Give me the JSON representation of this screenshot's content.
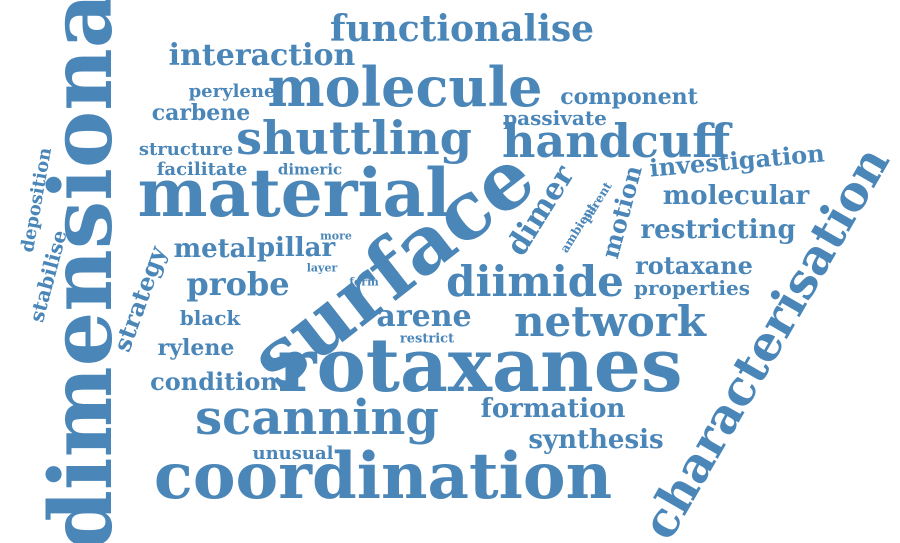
{
  "color": "#4a86b8",
  "words": [
    {
      "text": "dimensional",
      "weight": 10
    },
    {
      "text": "surface",
      "weight": 10
    },
    {
      "text": "rotaxanes",
      "weight": 9
    },
    {
      "text": "coordination",
      "weight": 8
    },
    {
      "text": "material",
      "weight": 8
    },
    {
      "text": "characterisation",
      "weight": 7
    },
    {
      "text": "molecule",
      "weight": 7
    },
    {
      "text": "shuttling",
      "weight": 6
    },
    {
      "text": "handcuff",
      "weight": 6
    },
    {
      "text": "scanning",
      "weight": 6
    },
    {
      "text": "network",
      "weight": 5
    },
    {
      "text": "diimide",
      "weight": 5
    },
    {
      "text": "functionalise",
      "weight": 5
    },
    {
      "text": "dimer",
      "weight": 4
    },
    {
      "text": "interaction",
      "weight": 4
    },
    {
      "text": "probe",
      "weight": 4
    },
    {
      "text": "arene",
      "weight": 4
    },
    {
      "text": "formation",
      "weight": 3
    },
    {
      "text": "synthesis",
      "weight": 3
    },
    {
      "text": "restricting",
      "weight": 3
    },
    {
      "text": "molecular",
      "weight": 3
    },
    {
      "text": "investigation",
      "weight": 3
    },
    {
      "text": "motion",
      "weight": 3
    },
    {
      "text": "strategy",
      "weight": 3
    },
    {
      "text": "condition",
      "weight": 3
    },
    {
      "text": "rotaxane",
      "weight": 3
    },
    {
      "text": "metal",
      "weight": 3
    },
    {
      "text": "pillar",
      "weight": 3
    },
    {
      "text": "component",
      "weight": 2
    },
    {
      "text": "carbene",
      "weight": 2
    },
    {
      "text": "rylene",
      "weight": 2
    },
    {
      "text": "black",
      "weight": 2
    },
    {
      "text": "stabilise",
      "weight": 2
    },
    {
      "text": "properties",
      "weight": 2
    },
    {
      "text": "passivate",
      "weight": 2
    },
    {
      "text": "perylene",
      "weight": 2
    },
    {
      "text": "structure",
      "weight": 2
    },
    {
      "text": "facilitate",
      "weight": 2
    },
    {
      "text": "deposition",
      "weight": 2
    },
    {
      "text": "unusual",
      "weight": 2
    },
    {
      "text": "dimeric",
      "weight": 1
    },
    {
      "text": "ambient",
      "weight": 1
    },
    {
      "text": "parent",
      "weight": 1
    },
    {
      "text": "restrict",
      "weight": 1
    },
    {
      "text": "more",
      "weight": 1
    },
    {
      "text": "layer",
      "weight": 1
    },
    {
      "text": "form",
      "weight": 1
    }
  ]
}
